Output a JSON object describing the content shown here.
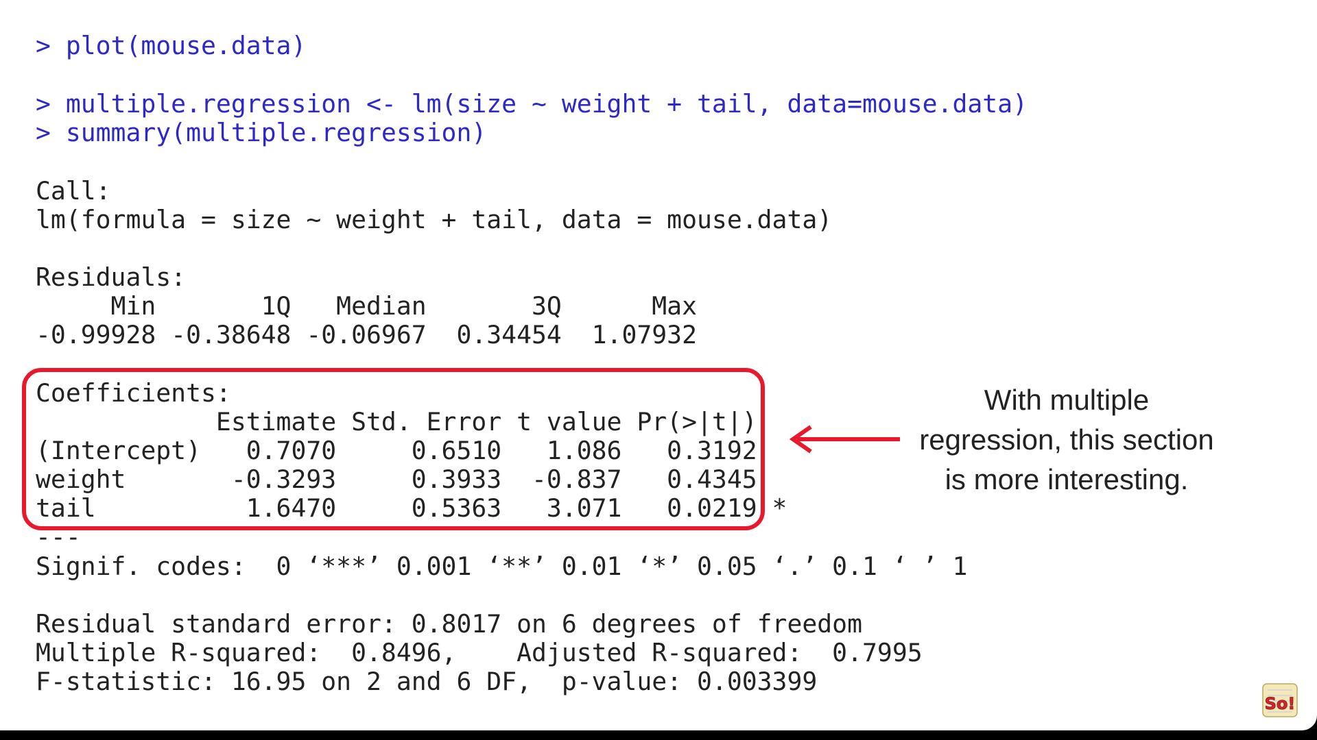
{
  "console": {
    "cmd_plot": "> plot(mouse.data)",
    "cmd_lm": "> multiple.regression <- lm(size ~ weight + tail, data=mouse.data)",
    "cmd_summary": "> summary(multiple.regression)",
    "call_header": "Call:",
    "call_formula": "lm(formula = size ~ weight + tail, data = mouse.data)",
    "residuals_header": "Residuals:",
    "residuals_labels": "     Min       1Q   Median       3Q      Max ",
    "residuals_values": "-0.99928 -0.38648 -0.06967  0.34454  1.07932 ",
    "coef_header": "Coefficients:",
    "coef_columns": "            Estimate Std. Error t value Pr(>|t|)  ",
    "coef_intercept": "(Intercept)   0.7070     0.6510   1.086   0.3192  ",
    "coef_weight": "weight       -0.3293     0.3933  -0.837   0.4345  ",
    "coef_tail": "tail          1.6470     0.5363   3.071   0.0219 *",
    "separator": "---",
    "signif_codes": "Signif. codes:  0 ‘***’ 0.001 ‘**’ 0.01 ‘*’ 0.05 ‘.’ 0.1 ‘ ’ 1",
    "residual_se": "Residual standard error: 0.8017 on 6 degrees of freedom",
    "r_squared": "Multiple R-squared:  0.8496,\tAdjusted R-squared:  0.7995 ",
    "f_statistic": "F-statistic: 16.95 on 2 and 6 DF,  p-value: 0.003399"
  },
  "callout": {
    "line1": "With multiple",
    "line2": "regression, this section",
    "line3": "is more interesting."
  },
  "logo": {
    "icon": "statquest-logo-icon",
    "text": "So!"
  },
  "colors": {
    "command": "#2d28c8",
    "output": "#222222",
    "highlight": "#e8192d"
  }
}
